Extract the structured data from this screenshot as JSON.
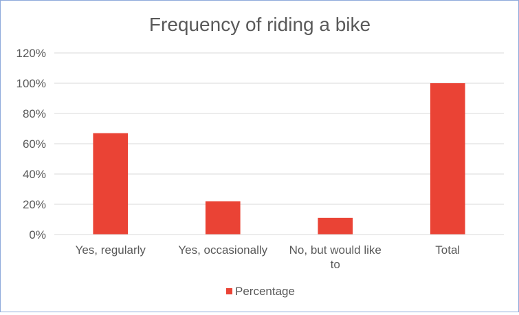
{
  "chart_data": {
    "type": "bar",
    "title": "Frequency of riding a bike",
    "categories": [
      [
        "Yes, regularly"
      ],
      [
        "Yes, occasionally"
      ],
      [
        "No, but would like",
        "to"
      ],
      [
        "Total"
      ]
    ],
    "series": [
      {
        "name": "Percentage",
        "values": [
          67,
          22,
          11,
          100
        ],
        "color": "#ea4335"
      }
    ],
    "ylim": [
      0,
      120
    ],
    "yticks": [
      "0%",
      "20%",
      "40%",
      "60%",
      "80%",
      "100%",
      "120%"
    ],
    "ytick_values": [
      0,
      20,
      40,
      60,
      80,
      100,
      120
    ],
    "grid": true,
    "legend_position": "bottom"
  }
}
